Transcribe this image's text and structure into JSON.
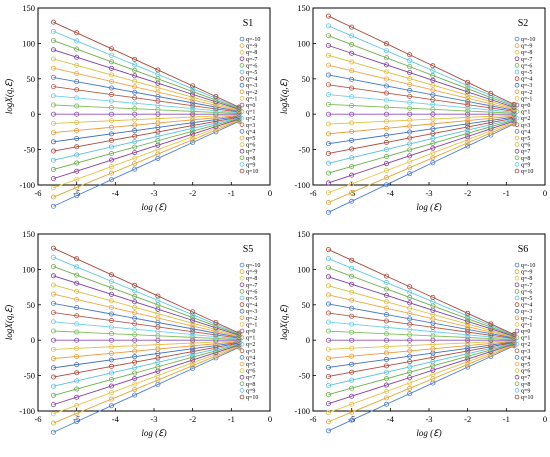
{
  "chart_data": [
    {
      "type": "line",
      "title": "S1",
      "xlabel": "log (ℇ)",
      "ylabel": "logX(q,ℇ)",
      "xlim": [
        -6,
        0
      ],
      "ylim": [
        -100,
        150
      ],
      "xticks": [
        "-6",
        "-5",
        "-4",
        "-3",
        "-2",
        "-1",
        "0"
      ],
      "yticks": [
        "-100",
        "-50",
        "0",
        "50",
        "100",
        "150"
      ],
      "grid": false,
      "legend": "right",
      "x": [
        -5.6,
        -5.0,
        -4.1,
        -3.5,
        -2.9,
        -2.0,
        -1.4,
        -0.8
      ],
      "slope_per_q": -2.5,
      "intercept_per_q": -1.0,
      "series": [
        {
          "name": "q=-10"
        },
        {
          "name": "q=-9"
        },
        {
          "name": "q=-8"
        },
        {
          "name": "q=-7"
        },
        {
          "name": "q=-6"
        },
        {
          "name": "q=-5"
        },
        {
          "name": "q=-4"
        },
        {
          "name": "q=-3"
        },
        {
          "name": "q=-2"
        },
        {
          "name": "q=-1"
        },
        {
          "name": "q=0"
        },
        {
          "name": "q=1"
        },
        {
          "name": "q=2"
        },
        {
          "name": "q=3"
        },
        {
          "name": "q=4"
        },
        {
          "name": "q=5"
        },
        {
          "name": "q=6"
        },
        {
          "name": "q=7"
        },
        {
          "name": "q=8"
        },
        {
          "name": "q=9"
        },
        {
          "name": "q=10"
        }
      ]
    },
    {
      "type": "line",
      "title": "S2",
      "xlabel": "log (ℇ)",
      "ylabel": "logX(q,ℇ)",
      "xlim": [
        -6,
        0
      ],
      "ylim": [
        -100,
        150
      ],
      "xticks": [
        "-6",
        "-5",
        "-4",
        "-3",
        "-2",
        "-1",
        "0"
      ],
      "yticks": [
        "-100",
        "-50",
        "0",
        "50",
        "100",
        "150"
      ],
      "grid": false,
      "legend": "right",
      "x": [
        -5.6,
        -5.0,
        -4.1,
        -3.5,
        -2.9,
        -2.0,
        -1.4,
        -0.8
      ],
      "slope_per_q": -2.6,
      "intercept_per_q": -0.7,
      "series": [
        {
          "name": "q=-10"
        },
        {
          "name": "q=-9"
        },
        {
          "name": "q=-8"
        },
        {
          "name": "q=-7"
        },
        {
          "name": "q=-6"
        },
        {
          "name": "q=-5"
        },
        {
          "name": "q=-4"
        },
        {
          "name": "q=-3"
        },
        {
          "name": "q=-2"
        },
        {
          "name": "q=-1"
        },
        {
          "name": "q=0"
        },
        {
          "name": "q=1"
        },
        {
          "name": "q=2"
        },
        {
          "name": "q=3"
        },
        {
          "name": "q=4"
        },
        {
          "name": "q=5"
        },
        {
          "name": "q=6"
        },
        {
          "name": "q=7"
        },
        {
          "name": "q=8"
        },
        {
          "name": "q=9"
        },
        {
          "name": "q=10"
        }
      ]
    },
    {
      "type": "line",
      "title": "S5",
      "xlabel": "log (ℇ)",
      "ylabel": "logX(q,ℇ)",
      "xlim": [
        -6,
        0
      ],
      "ylim": [
        -100,
        150
      ],
      "xticks": [
        "-6",
        "-5",
        "-4",
        "-3",
        "-2",
        "-1",
        "0"
      ],
      "yticks": [
        "-100",
        "-50",
        "0",
        "50",
        "100",
        "150"
      ],
      "grid": false,
      "legend": "right",
      "x": [
        -5.6,
        -5.0,
        -4.1,
        -3.5,
        -2.9,
        -2.0,
        -1.4,
        -0.8
      ],
      "slope_per_q": -2.5,
      "intercept_per_q": -1.0,
      "series": [
        {
          "name": "q=-10"
        },
        {
          "name": "q=-9"
        },
        {
          "name": "q=-8"
        },
        {
          "name": "q=-7"
        },
        {
          "name": "q=-6"
        },
        {
          "name": "q=-5"
        },
        {
          "name": "q=-4"
        },
        {
          "name": "q=-3"
        },
        {
          "name": "q=-2"
        },
        {
          "name": "q=-1"
        },
        {
          "name": "q=0"
        },
        {
          "name": "q=1"
        },
        {
          "name": "q=2"
        },
        {
          "name": "q=3"
        },
        {
          "name": "q=4"
        },
        {
          "name": "q=5"
        },
        {
          "name": "q=6"
        },
        {
          "name": "q=7"
        },
        {
          "name": "q=8"
        },
        {
          "name": "q=9"
        },
        {
          "name": "q=10"
        }
      ]
    },
    {
      "type": "line",
      "title": "S6",
      "xlabel": "log (ℇ)",
      "ylabel": "logX(q,ℇ)",
      "xlim": [
        -6,
        0
      ],
      "ylim": [
        -100,
        150
      ],
      "xticks": [
        "-6",
        "-5",
        "-4",
        "-3",
        "-2",
        "-1",
        "0"
      ],
      "yticks": [
        "-100",
        "-50",
        "0",
        "50",
        "100",
        "150"
      ],
      "grid": false,
      "legend": "right",
      "x": [
        -5.6,
        -5.0,
        -4.1,
        -3.5,
        -2.9,
        -2.0,
        -1.4,
        -0.8
      ],
      "slope_per_q": -2.5,
      "intercept_per_q": -1.2,
      "series": [
        {
          "name": "q=-10"
        },
        {
          "name": "q=-9"
        },
        {
          "name": "q=-8"
        },
        {
          "name": "q=-7"
        },
        {
          "name": "q=-6"
        },
        {
          "name": "q=-5"
        },
        {
          "name": "q=-4"
        },
        {
          "name": "q=-3"
        },
        {
          "name": "q=-2"
        },
        {
          "name": "q=-1"
        },
        {
          "name": "q=0"
        },
        {
          "name": "q=1"
        },
        {
          "name": "q=2"
        },
        {
          "name": "q=3"
        },
        {
          "name": "q=4"
        },
        {
          "name": "q=5"
        },
        {
          "name": "q=6"
        },
        {
          "name": "q=7"
        },
        {
          "name": "q=8"
        },
        {
          "name": "q=9"
        },
        {
          "name": "q=10"
        }
      ]
    }
  ],
  "series_colors": [
    "#4e7fd6",
    "#e0a63a",
    "#e8c44a",
    "#8a3fa0",
    "#6ab04c",
    "#5bc0de",
    "#b04a3a",
    "#3f6fbf",
    "#e89a3a",
    "#e0c04a",
    "#8f4fb0",
    "#7cc05a",
    "#6fd0e8",
    "#b85a48",
    "#4a7ac8",
    "#f0a848",
    "#d8c040",
    "#8040a0",
    "#70b050",
    "#60c8e0",
    "#a84838"
  ]
}
